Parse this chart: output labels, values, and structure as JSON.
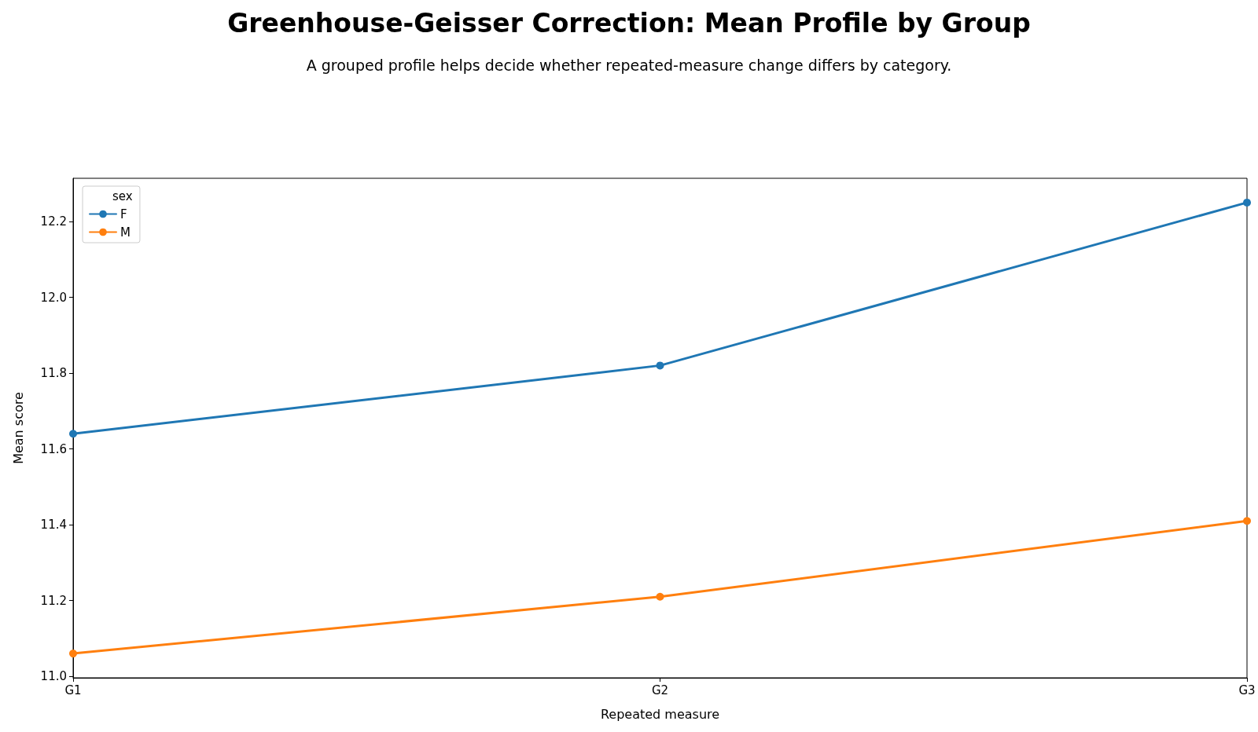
{
  "chart_data": {
    "type": "line",
    "title": "Greenhouse-Geisser Correction: Mean Profile by Group",
    "subtitle": "A grouped profile helps decide whether repeated-measure change differs by category.",
    "xlabel": "Repeated measure",
    "ylabel": "Mean score",
    "legend_title": "sex",
    "categories": [
      "G1",
      "G2",
      "G3"
    ],
    "series": [
      {
        "name": "F",
        "color": "#1f77b4",
        "values": [
          11.64,
          11.82,
          12.25
        ]
      },
      {
        "name": "M",
        "color": "#ff7f0e",
        "values": [
          11.06,
          11.21,
          11.41
        ]
      }
    ],
    "ylim": [
      10.996,
      12.314
    ],
    "yticks": [
      {
        "value": 11.0,
        "label": "11.0"
      },
      11.2,
      11.4,
      11.6,
      11.8,
      {
        "value": 12.0,
        "label": "12.0"
      },
      12.2
    ],
    "legend": "top left",
    "marker": "circle",
    "line_style": "solid",
    "grid": false
  }
}
